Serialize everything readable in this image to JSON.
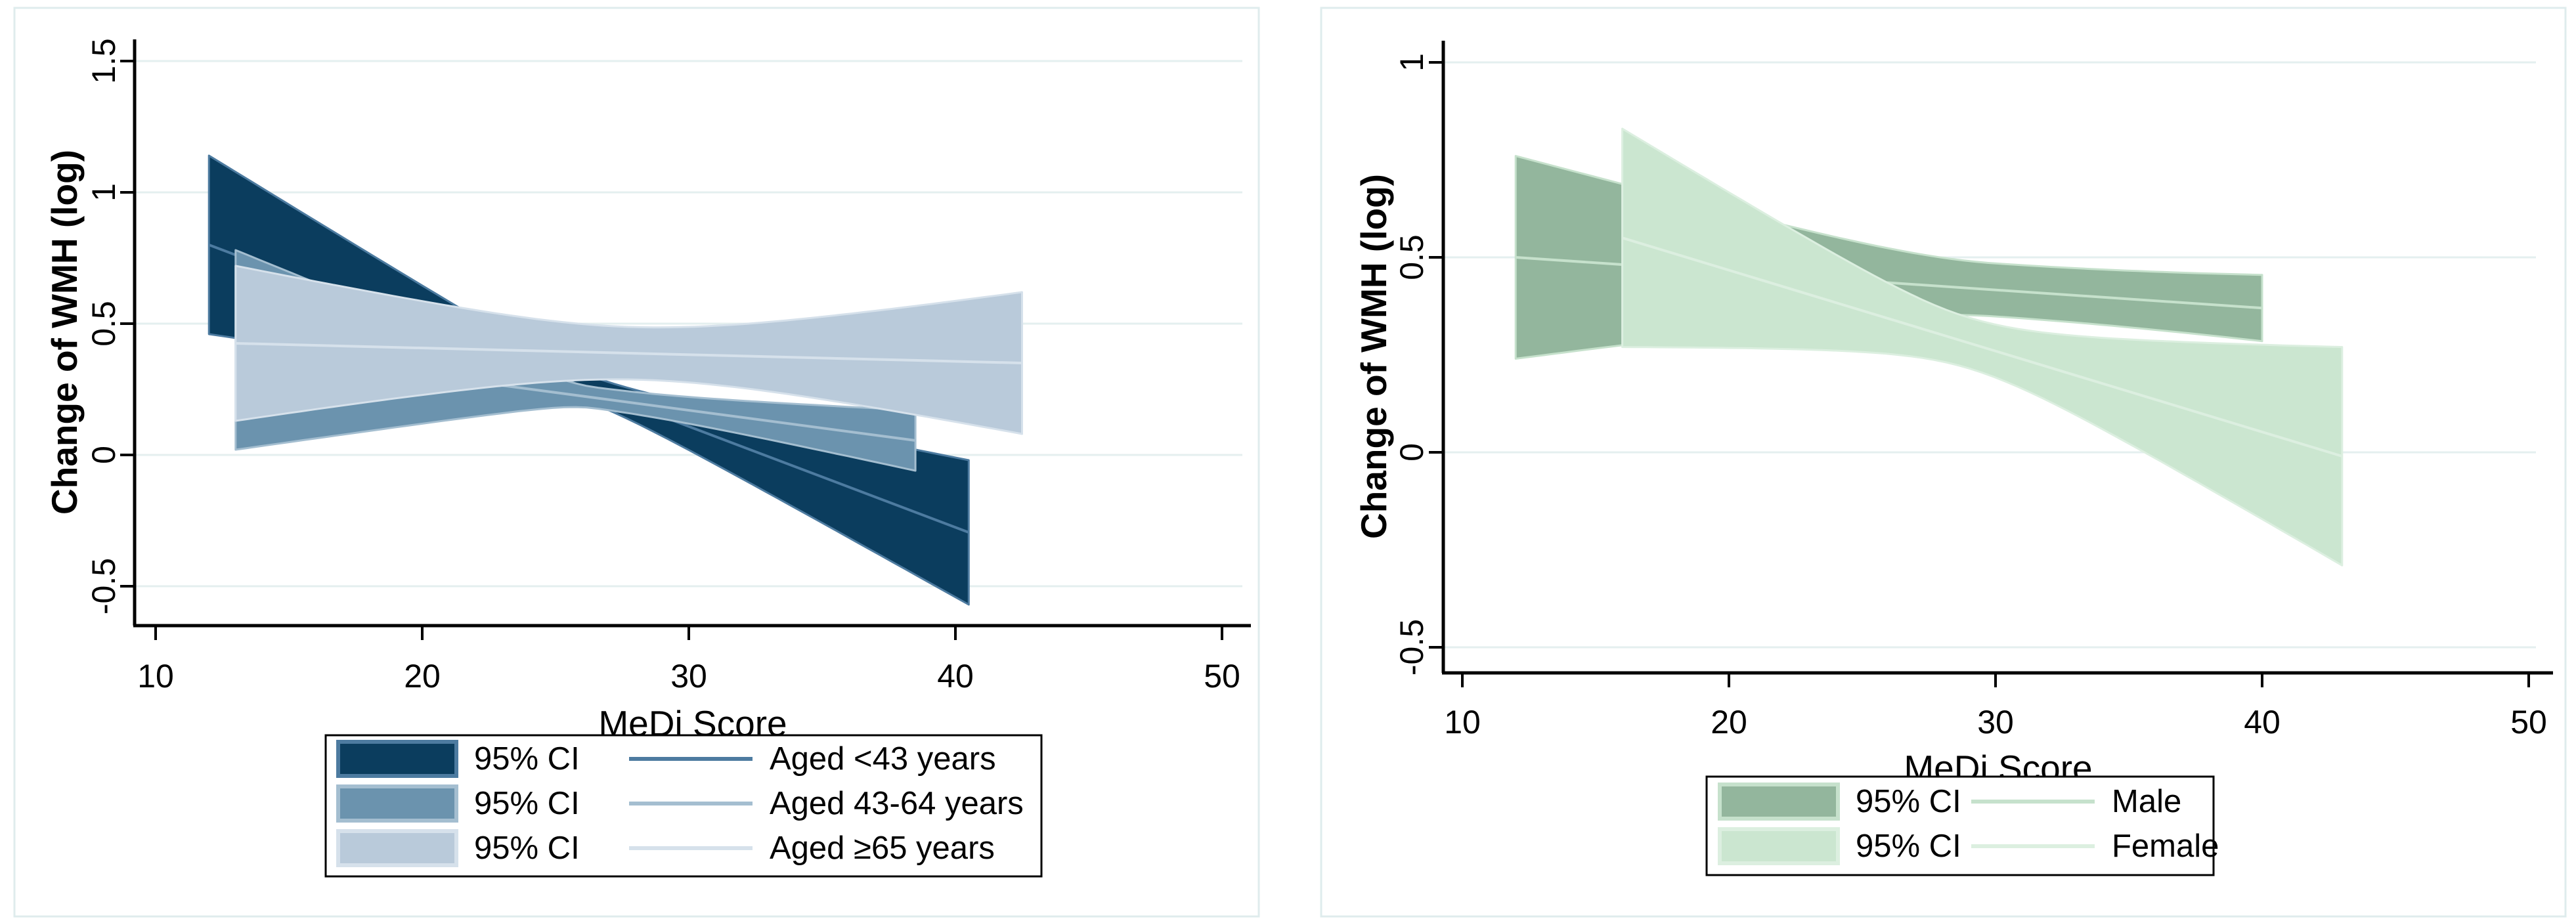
{
  "figure": {
    "background": "#ffffff",
    "panel_fill": "#ffffff",
    "panel_border_color": "#dfeced",
    "grid_color": "#e4efef",
    "axis_color": "#000000",
    "text_color": "#000000",
    "legend_border_color": "#000000",
    "legend_fill": "#ffffff"
  },
  "chart_data": [
    {
      "type": "area",
      "panel": "by-age-group",
      "title": "",
      "xlabel": "MeDi Score",
      "ylabel": "Change of WMH (log)",
      "xlim": [
        9.2,
        51.5
      ],
      "ylim": [
        -0.66,
        1.62
      ],
      "xticks": [
        10,
        20,
        30,
        40,
        50
      ],
      "yticks": [
        -0.5,
        0,
        0.5,
        1,
        1.5
      ],
      "ytick_labels": [
        "-0.5",
        "0",
        "0.5",
        "1",
        "1.5"
      ],
      "xtick_labels": [
        "10",
        "20",
        "30",
        "40",
        "50"
      ],
      "grid": "horizontal",
      "legend_position": "bottom",
      "series": [
        {
          "name": "Aged <43 years",
          "ci_label": "95% CI",
          "fill": "#0b3d5e",
          "edge": "#4d7ba0",
          "line_color": "#4d7ba0",
          "x_start": 12,
          "x_end": 40.5,
          "line_start_y": 0.8,
          "line_end_y": -0.295,
          "ci_halfwidth_start": 0.34,
          "ci_halfwidth_min": 0.05,
          "ci_halfwidth_end": 0.275,
          "ci_pinch_x": 26
        },
        {
          "name": "Aged 43-64 years",
          "ci_label": "95% CI",
          "fill": "#6b93ae",
          "edge": "#a4bed0",
          "line_color": "#a4bed0",
          "x_start": 13,
          "x_end": 38.5,
          "line_start_y": 0.4,
          "line_end_y": 0.055,
          "ci_halfwidth_start": 0.38,
          "ci_halfwidth_min": 0.04,
          "ci_halfwidth_end": 0.115,
          "ci_pinch_x": 26.5
        },
        {
          "name": "Aged ≥65 years",
          "ci_label": "95% CI",
          "fill": "#b9cada",
          "edge": "#d6e1eb",
          "line_color": "#d6e1eb",
          "x_start": 13,
          "x_end": 42.5,
          "line_start_y": 0.425,
          "line_end_y": 0.35,
          "ci_halfwidth_start": 0.295,
          "ci_halfwidth_min": 0.1,
          "ci_halfwidth_end": 0.27,
          "ci_pinch_x": 28
        }
      ]
    },
    {
      "type": "area",
      "panel": "by-sex",
      "title": "",
      "xlabel": "MeDi Score",
      "ylabel": "Change of WMH (log)",
      "xlim": [
        9.2,
        51.5
      ],
      "ylim": [
        -0.62,
        1.12
      ],
      "xticks": [
        10,
        20,
        30,
        40,
        50
      ],
      "yticks": [
        -0.5,
        0,
        0.5,
        1
      ],
      "ytick_labels": [
        "-0.5",
        "0",
        "0.5",
        "1"
      ],
      "xtick_labels": [
        "10",
        "20",
        "30",
        "40",
        "50"
      ],
      "grid": "horizontal",
      "legend_position": "bottom",
      "series": [
        {
          "name": "Male",
          "ci_label": "95% CI",
          "fill": "#93b69d",
          "edge": "#c6e1cc",
          "line_color": "#c6e1cc",
          "x_start": 12,
          "x_end": 40,
          "line_start_y": 0.5,
          "line_end_y": 0.37,
          "ci_halfwidth_start": 0.26,
          "ci_halfwidth_min": 0.068,
          "ci_halfwidth_end": 0.085,
          "ci_pinch_x": 30
        },
        {
          "name": "Female",
          "ci_label": "95% CI",
          "fill": "#cbe6d0",
          "edge": "#dcefe0",
          "line_color": "#dcefe0",
          "x_start": 16,
          "x_end": 43,
          "line_start_y": 0.55,
          "line_end_y": -0.01,
          "ci_halfwidth_start": 0.28,
          "ci_halfwidth_min": 0.065,
          "ci_halfwidth_end": 0.28,
          "ci_pinch_x": 29
        }
      ]
    }
  ]
}
